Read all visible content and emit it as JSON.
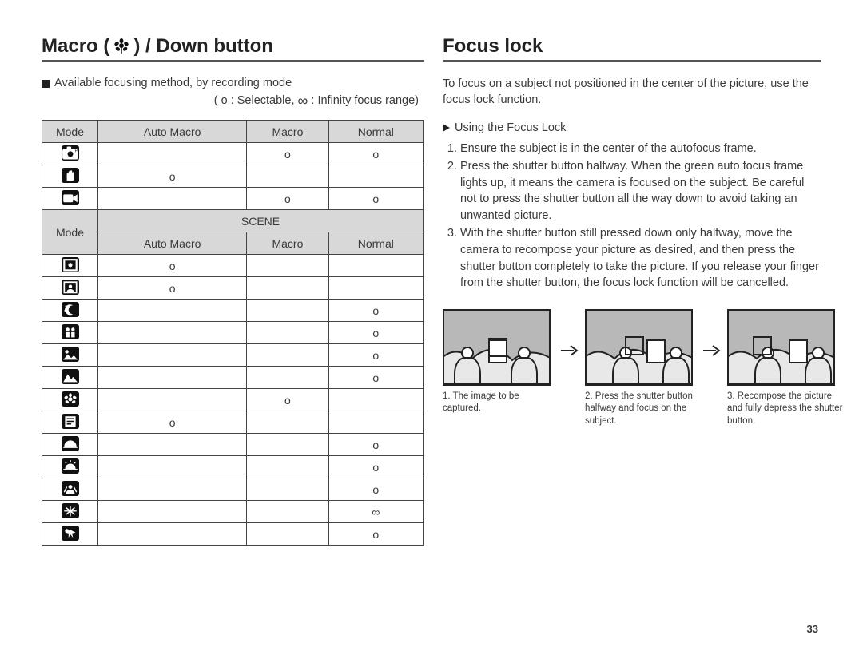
{
  "left": {
    "title_pre": "Macro (",
    "title_post": ") / Down button",
    "lead": "Available focusing method, by recording mode",
    "legend_pre": "( o : Selectable,  ",
    "legend_post": " : Infinity focus range)",
    "table": {
      "header1": [
        "Mode",
        "Auto Macro",
        "Macro",
        "Normal"
      ],
      "rows1": [
        {
          "icon": "camera-p",
          "cells": [
            "",
            "o",
            "o"
          ]
        },
        {
          "icon": "hand",
          "cells": [
            "o",
            "",
            ""
          ]
        },
        {
          "icon": "movie",
          "cells": [
            "",
            "o",
            "o"
          ]
        }
      ],
      "scene_label": "SCENE",
      "mode_label": "Mode",
      "header2": [
        "Auto Macro",
        "Macro",
        "Normal"
      ],
      "rows2": [
        {
          "icon": "frame",
          "cells": [
            "o",
            "",
            ""
          ]
        },
        {
          "icon": "portrait",
          "cells": [
            "o",
            "",
            ""
          ]
        },
        {
          "icon": "night",
          "cells": [
            "",
            "",
            "o"
          ]
        },
        {
          "icon": "children",
          "cells": [
            "",
            "",
            "o"
          ]
        },
        {
          "icon": "landscape2",
          "cells": [
            "",
            "",
            "o"
          ]
        },
        {
          "icon": "mountain",
          "cells": [
            "",
            "",
            "o"
          ]
        },
        {
          "icon": "closeup",
          "cells": [
            "",
            "o",
            ""
          ]
        },
        {
          "icon": "text",
          "cells": [
            "o",
            "",
            ""
          ]
        },
        {
          "icon": "sunset",
          "cells": [
            "",
            "",
            "o"
          ]
        },
        {
          "icon": "dawn",
          "cells": [
            "",
            "",
            "o"
          ]
        },
        {
          "icon": "backlight",
          "cells": [
            "",
            "",
            "o"
          ]
        },
        {
          "icon": "firework",
          "cells": [
            "",
            "",
            "∞"
          ]
        },
        {
          "icon": "beach",
          "cells": [
            "",
            "",
            "o"
          ]
        }
      ]
    }
  },
  "right": {
    "title": "Focus lock",
    "intro": "To focus on a subject not positioned in the center of the picture, use the focus lock function.",
    "subhead": "Using the Focus Lock",
    "steps": [
      "Ensure the subject is in the center of the autofocus frame.",
      "Press the shutter button halfway. When the green auto focus frame lights up, it means the camera is focused on the subject. Be careful not to press the shutter button all the way down to avoid taking an unwanted picture.",
      "With the shutter button still pressed down only halfway, move the camera to recompose your picture as desired, and then press the shutter button completely to take the picture. If you release your finger from the shutter button, the focus lock function will be cancelled."
    ],
    "figcaps": [
      "1. The image to be captured.",
      "2. Press the shutter button halfway and focus on the subject.",
      "3. Recompose the picture and fully depress the shutter button."
    ]
  },
  "page_number": "33"
}
